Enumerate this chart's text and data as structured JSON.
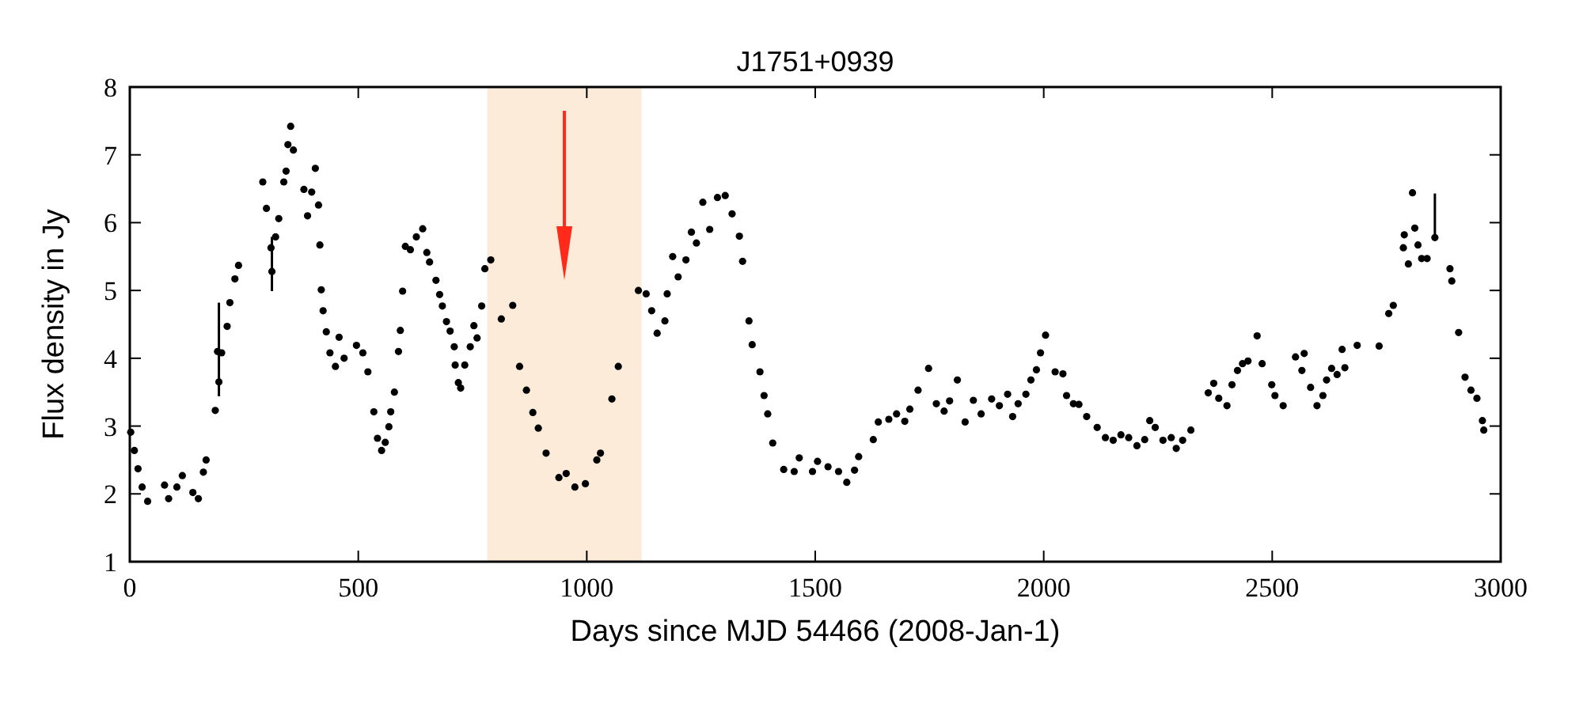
{
  "chart_data": {
    "type": "scatter",
    "title": "J1751+0939",
    "xlabel": "Days since MJD 54466 (2008-Jan-1)",
    "ylabel": "Flux density in Jy",
    "xlim": [
      0,
      3000
    ],
    "ylim": [
      1,
      8
    ],
    "xticks": [
      0,
      500,
      1000,
      1500,
      2000,
      2500,
      3000
    ],
    "yticks": [
      1,
      2,
      3,
      4,
      5,
      6,
      7,
      8
    ],
    "grid": false,
    "marker": "circle",
    "bands": [
      {
        "axis": "x",
        "from": 782,
        "to": 1120,
        "color": "#fdebd9"
      }
    ],
    "series": [
      {
        "color": "#000000",
        "x": [
          2,
          10,
          18,
          27,
          39,
          76,
          85,
          103,
          115,
          138,
          150,
          161,
          167,
          187,
          195,
          192,
          201,
          213,
          219,
          230,
          238,
          291,
          299,
          309,
          311,
          319,
          326,
          337,
          342,
          346,
          352,
          358,
          381,
          389,
          398,
          406,
          413,
          416,
          419,
          423,
          430,
          438,
          450,
          458,
          469,
          496,
          510,
          521,
          534,
          542,
          551,
          559,
          567,
          571,
          579,
          588,
          592,
          597,
          603,
          614,
          627,
          641,
          650,
          656,
          670,
          678,
          684,
          693,
          701,
          710,
          712,
          719,
          724,
          733,
          745,
          753,
          760,
          770,
          777,
          790,
          813,
          838,
          853,
          868,
          882,
          894,
          911,
          939,
          955,
          974,
          997,
          1022,
          1030,
          1055,
          1069,
          1113,
          1130,
          1142,
          1154,
          1171,
          1176,
          1188,
          1200,
          1217,
          1229,
          1240,
          1254,
          1269,
          1286,
          1303,
          1318,
          1334,
          1341,
          1355,
          1362,
          1379,
          1388,
          1396,
          1407,
          1431,
          1454,
          1465,
          1494,
          1505,
          1528,
          1551,
          1569,
          1586,
          1595,
          1627,
          1638,
          1661,
          1678,
          1696,
          1707,
          1725,
          1748,
          1765,
          1782,
          1794,
          1811,
          1828,
          1846,
          1863,
          1886,
          1903,
          1921,
          1932,
          1944,
          1961,
          1972,
          1984,
          1993,
          2004,
          2025,
          2042,
          2050,
          2065,
          2077,
          2094,
          2117,
          2135,
          2152,
          2169,
          2186,
          2204,
          2221,
          2232,
          2244,
          2261,
          2279,
          2290,
          2304,
          2322,
          2360,
          2372,
          2383,
          2401,
          2412,
          2424,
          2435,
          2447,
          2467,
          2478,
          2499,
          2506,
          2524,
          2551,
          2565,
          2570,
          2584,
          2598,
          2611,
          2619,
          2630,
          2642,
          2653,
          2659,
          2686,
          2734,
          2755,
          2765,
          2787,
          2789,
          2798,
          2807,
          2812,
          2819,
          2827,
          2839,
          2856,
          2889,
          2893,
          2908,
          2922,
          2935,
          2948,
          2960,
          2963
        ],
        "values": [
          2.91,
          2.64,
          2.37,
          2.1,
          1.89,
          2.13,
          1.93,
          2.1,
          2.27,
          2.02,
          1.93,
          2.32,
          2.5,
          3.23,
          3.65,
          4.1,
          4.08,
          4.47,
          4.82,
          5.17,
          5.37,
          6.6,
          6.21,
          5.63,
          5.28,
          5.79,
          6.06,
          6.6,
          6.76,
          7.15,
          7.42,
          7.07,
          6.49,
          6.1,
          6.45,
          6.8,
          6.26,
          5.67,
          5.01,
          4.7,
          4.39,
          4.08,
          3.88,
          4.31,
          4.0,
          4.19,
          4.08,
          3.8,
          3.21,
          2.82,
          2.64,
          2.76,
          2.99,
          3.21,
          3.5,
          4.1,
          4.41,
          4.99,
          5.65,
          5.6,
          5.79,
          5.91,
          5.56,
          5.42,
          5.15,
          4.94,
          4.77,
          4.54,
          4.4,
          4.17,
          3.9,
          3.64,
          3.56,
          3.9,
          4.17,
          4.48,
          4.3,
          4.77,
          5.32,
          5.45,
          4.58,
          4.78,
          3.88,
          3.53,
          3.2,
          2.97,
          2.6,
          2.24,
          2.3,
          2.1,
          2.15,
          2.5,
          2.6,
          3.4,
          3.88,
          5.0,
          4.95,
          4.7,
          4.37,
          4.55,
          4.95,
          5.5,
          5.2,
          5.45,
          5.86,
          5.7,
          6.3,
          5.9,
          6.37,
          6.4,
          6.13,
          5.8,
          5.43,
          4.55,
          4.2,
          3.8,
          3.45,
          3.18,
          2.75,
          2.36,
          2.33,
          2.53,
          2.33,
          2.48,
          2.4,
          2.33,
          2.17,
          2.35,
          2.55,
          2.8,
          3.06,
          3.1,
          3.18,
          3.07,
          3.25,
          3.53,
          3.85,
          3.33,
          3.22,
          3.37,
          3.68,
          3.06,
          3.38,
          3.18,
          3.4,
          3.3,
          3.47,
          3.14,
          3.33,
          3.47,
          3.68,
          3.83,
          4.08,
          4.34,
          3.8,
          3.77,
          3.45,
          3.33,
          3.32,
          3.14,
          2.98,
          2.83,
          2.79,
          2.87,
          2.83,
          2.71,
          2.8,
          3.08,
          2.98,
          2.79,
          2.83,
          2.67,
          2.79,
          2.94,
          3.49,
          3.63,
          3.41,
          3.3,
          3.61,
          3.82,
          3.92,
          3.96,
          4.33,
          3.92,
          3.61,
          3.45,
          3.3,
          4.02,
          3.82,
          4.07,
          3.57,
          3.3,
          3.45,
          3.68,
          3.85,
          3.76,
          4.13,
          3.86,
          4.19,
          4.18,
          4.66,
          4.78,
          5.63,
          5.82,
          5.39,
          6.44,
          5.92,
          5.67,
          5.47,
          5.47,
          5.78,
          5.32,
          5.14,
          4.38,
          3.72,
          3.53,
          3.41,
          3.08,
          2.94
        ],
        "errors": [
          null,
          null,
          null,
          null,
          null,
          null,
          null,
          null,
          null,
          null,
          null,
          null,
          null,
          null,
          [
            3.44,
            4.82
          ],
          null,
          null,
          null,
          null,
          null,
          null,
          null,
          null,
          null,
          [
            4.99,
            5.79
          ],
          null,
          null,
          null,
          null,
          null,
          null,
          null,
          null,
          null,
          null,
          null,
          null,
          null,
          null,
          null,
          null,
          null,
          null,
          null,
          null,
          null,
          null,
          null,
          null,
          null,
          null,
          null,
          null,
          null,
          null,
          null,
          null,
          null,
          null,
          null,
          null,
          null,
          null,
          null,
          null,
          null,
          null,
          null,
          null,
          null,
          null,
          null,
          null,
          null,
          null,
          null,
          null,
          null,
          null,
          null,
          null,
          null,
          null,
          null,
          null,
          null,
          null,
          null,
          null,
          null,
          null,
          null,
          null,
          null,
          null,
          null,
          null,
          null,
          null,
          null,
          null,
          null,
          null,
          null,
          null,
          null,
          null,
          null,
          null,
          null,
          null,
          null,
          null,
          null,
          null,
          null,
          null,
          null,
          null,
          null,
          null,
          null,
          null,
          null,
          null,
          null,
          null,
          null,
          null,
          null,
          null,
          null,
          null,
          null,
          null,
          null,
          null,
          null,
          null,
          null,
          null,
          null,
          null,
          null,
          null,
          null,
          null,
          null,
          null,
          null,
          null,
          null,
          null,
          null,
          null,
          null,
          null,
          null,
          null,
          null,
          null,
          null,
          null,
          null,
          null,
          null,
          null,
          null,
          null,
          null,
          null,
          null,
          null,
          null,
          null,
          null,
          null,
          null,
          null,
          null,
          null,
          null,
          null,
          null,
          null,
          null,
          null,
          null,
          null,
          null,
          null,
          null,
          null,
          null,
          null,
          null,
          null,
          null,
          null,
          null,
          null,
          null,
          null,
          null,
          null,
          null,
          null,
          null,
          null,
          null,
          [
            5.75,
            6.43
          ],
          null,
          null,
          null,
          null,
          null,
          null,
          null,
          null
        ]
      }
    ]
  }
}
